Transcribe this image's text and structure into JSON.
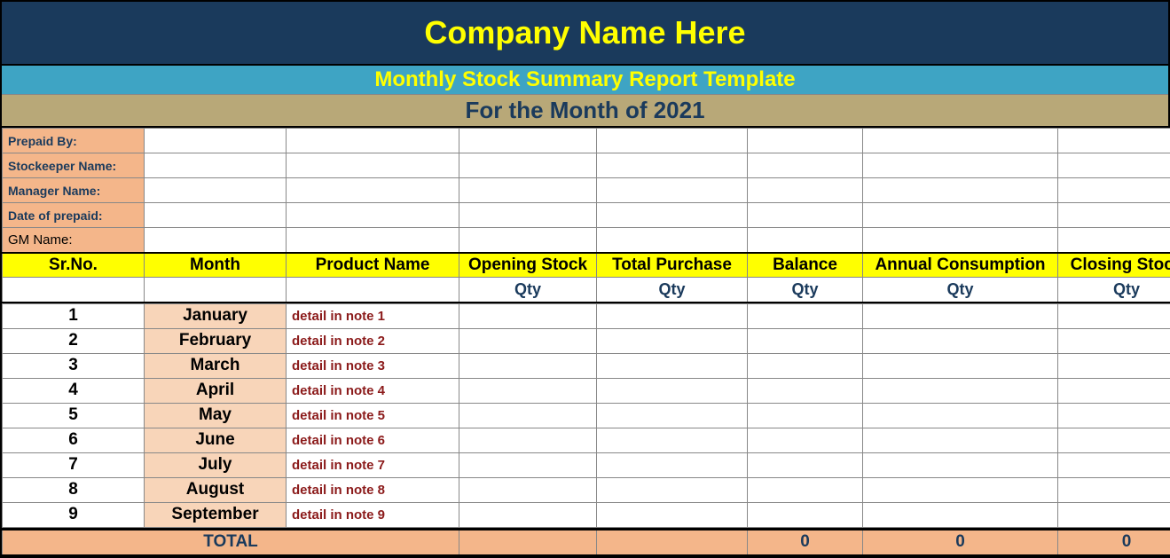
{
  "header": {
    "company": "Company Name Here",
    "report_title": "Monthly Stock Summary Report Template",
    "month_line": "For the Month of  2021"
  },
  "info": {
    "prepaid_by": "Prepaid By:",
    "stockeeper": "Stockeeper Name:",
    "manager": "Manager Name:",
    "date_prepaid": "Date of prepaid:",
    "gm_name": "GM Name:"
  },
  "columns": {
    "srno": "Sr.No.",
    "month": "Month",
    "product": "Product Name",
    "opening": "Opening Stock",
    "purchase": "Total Purchase",
    "balance": "Balance",
    "annual": "Annual Consumption",
    "closing": "Closing Stock",
    "qty": "Qty"
  },
  "rows": [
    {
      "srno": "1",
      "month": "January",
      "product": "detail in note 1"
    },
    {
      "srno": "2",
      "month": "February",
      "product": "detail in note 2"
    },
    {
      "srno": "3",
      "month": "March",
      "product": "detail in note 3"
    },
    {
      "srno": "4",
      "month": "April",
      "product": "detail in note 4"
    },
    {
      "srno": "5",
      "month": "May",
      "product": "detail in note 5"
    },
    {
      "srno": "6",
      "month": "June",
      "product": "detail in note 6"
    },
    {
      "srno": "7",
      "month": "July",
      "product": "detail in note 7"
    },
    {
      "srno": "8",
      "month": "August",
      "product": "detail in note 8"
    },
    {
      "srno": "9",
      "month": "September",
      "product": "detail in note 9"
    }
  ],
  "totals": {
    "label": "TOTAL",
    "balance": "0",
    "annual": "0",
    "closing": "0"
  },
  "colors": {
    "header_bg": "#1a3a5c",
    "header_text": "#ffff00",
    "subheader_bg": "#3ea4c4",
    "month_band_bg": "#b8a878",
    "info_label_bg": "#f4b68a",
    "month_cell_bg": "#f8d5b9",
    "yellow_header": "#ffff00",
    "navy_text": "#1a3a5c",
    "dark_red": "#8b1a1a"
  }
}
